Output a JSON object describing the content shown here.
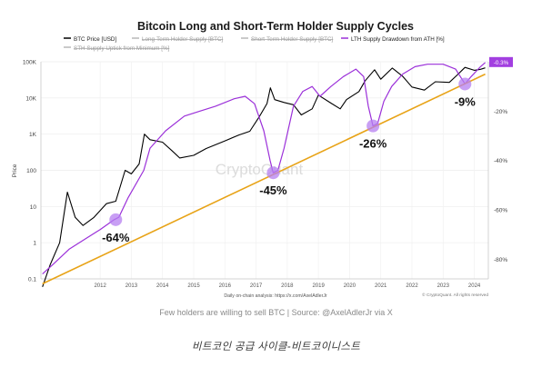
{
  "chart_data": {
    "type": "line",
    "title": "Bitcoin Long and Short-Term Holder Supply Cycles",
    "legend": [
      {
        "label": "BTC Price [USD]",
        "color": "#000000",
        "enabled": true
      },
      {
        "label": "Long-Term Holder Supply [BTC]",
        "color": "#9a9a9a",
        "enabled": false
      },
      {
        "label": "Short-Term Holder Supply [BTC]",
        "color": "#9a9a9a",
        "enabled": false
      },
      {
        "label": "LTH Supply Drawdown from ATH [%]",
        "color": "#9b30d9",
        "enabled": true
      },
      {
        "label": "STH Supply Uptick from Minimum [%]",
        "color": "#b07ad6",
        "enabled": false
      }
    ],
    "legend_position": "top",
    "x_ticks": [
      "2012",
      "2013",
      "2014",
      "2015",
      "2016",
      "2017",
      "2018",
      "2019",
      "2020",
      "2021",
      "2022",
      "2023",
      "2024"
    ],
    "xlim": [
      2010.6,
      2024.95
    ],
    "ylabel_left": "Price",
    "y_left_ticks": [
      "100K",
      "10K",
      "1K",
      "100",
      "10",
      "1",
      "0.1"
    ],
    "y_left_scale": "log",
    "ylim_left": [
      0.1,
      100000
    ],
    "y_right_ticks": [
      "-20%",
      "-40%",
      "-60%",
      "-80%"
    ],
    "ylim_right": [
      -88,
      0
    ],
    "current_value_label": "-0.3%",
    "grid": true,
    "series": [
      {
        "name": "BTC Price [USD]",
        "axis": "left",
        "color": "#000000",
        "points": [
          [
            2010.65,
            0.06
          ],
          [
            2010.9,
            0.25
          ],
          [
            2011.2,
            1
          ],
          [
            2011.45,
            25
          ],
          [
            2011.7,
            5
          ],
          [
            2011.95,
            3
          ],
          [
            2012.3,
            5
          ],
          [
            2012.7,
            12
          ],
          [
            2013.0,
            14
          ],
          [
            2013.3,
            100
          ],
          [
            2013.5,
            80
          ],
          [
            2013.75,
            150
          ],
          [
            2013.92,
            1000
          ],
          [
            2014.1,
            700
          ],
          [
            2014.5,
            600
          ],
          [
            2014.8,
            350
          ],
          [
            2015.05,
            220
          ],
          [
            2015.5,
            260
          ],
          [
            2015.9,
            400
          ],
          [
            2016.5,
            650
          ],
          [
            2016.95,
            950
          ],
          [
            2017.3,
            1200
          ],
          [
            2017.6,
            3000
          ],
          [
            2017.85,
            7000
          ],
          [
            2017.96,
            19000
          ],
          [
            2018.1,
            9000
          ],
          [
            2018.4,
            7500
          ],
          [
            2018.7,
            6500
          ],
          [
            2018.95,
            3400
          ],
          [
            2019.3,
            5000
          ],
          [
            2019.5,
            12000
          ],
          [
            2019.9,
            7200
          ],
          [
            2020.2,
            5000
          ],
          [
            2020.4,
            9000
          ],
          [
            2020.8,
            15000
          ],
          [
            2021.0,
            30000
          ],
          [
            2021.3,
            60000
          ],
          [
            2021.5,
            33000
          ],
          [
            2021.87,
            67000
          ],
          [
            2022.2,
            40000
          ],
          [
            2022.5,
            20000
          ],
          [
            2022.9,
            16500
          ],
          [
            2023.25,
            28000
          ],
          [
            2023.7,
            27000
          ],
          [
            2023.95,
            43000
          ],
          [
            2024.2,
            70000
          ],
          [
            2024.5,
            58000
          ],
          [
            2024.7,
            62000
          ],
          [
            2024.85,
            68000
          ]
        ]
      },
      {
        "name": "LTH Supply Drawdown from ATH [%]",
        "axis": "right",
        "color": "#9b30d9",
        "points": [
          [
            2010.65,
            -86
          ],
          [
            2011.0,
            -82
          ],
          [
            2011.5,
            -76
          ],
          [
            2012.0,
            -72
          ],
          [
            2012.5,
            -68
          ],
          [
            2012.95,
            -64
          ],
          [
            2013.1,
            -63
          ],
          [
            2013.4,
            -55
          ],
          [
            2013.9,
            -44
          ],
          [
            2014.1,
            -35
          ],
          [
            2014.6,
            -28
          ],
          [
            2015.2,
            -22
          ],
          [
            2015.7,
            -20
          ],
          [
            2016.2,
            -18
          ],
          [
            2016.8,
            -15
          ],
          [
            2017.15,
            -14
          ],
          [
            2017.45,
            -17
          ],
          [
            2017.75,
            -28
          ],
          [
            2017.95,
            -40
          ],
          [
            2018.05,
            -45
          ],
          [
            2018.2,
            -44
          ],
          [
            2018.4,
            -35
          ],
          [
            2018.7,
            -18
          ],
          [
            2019.0,
            -12
          ],
          [
            2019.3,
            -10
          ],
          [
            2019.55,
            -14
          ],
          [
            2019.9,
            -10
          ],
          [
            2020.3,
            -6
          ],
          [
            2020.7,
            -3
          ],
          [
            2020.95,
            -6
          ],
          [
            2021.1,
            -18
          ],
          [
            2021.25,
            -26
          ],
          [
            2021.4,
            -25
          ],
          [
            2021.6,
            -16
          ],
          [
            2021.85,
            -10
          ],
          [
            2022.2,
            -5
          ],
          [
            2022.6,
            -2
          ],
          [
            2023.0,
            -1
          ],
          [
            2023.5,
            -1
          ],
          [
            2023.9,
            -3
          ],
          [
            2024.2,
            -9
          ],
          [
            2024.4,
            -6
          ],
          [
            2024.7,
            -2
          ],
          [
            2024.85,
            -0.3
          ]
        ]
      },
      {
        "name": "Trend",
        "axis": "right",
        "color": "#e8a317",
        "points": [
          [
            2010.65,
            -90
          ],
          [
            2024.85,
            -5
          ]
        ]
      }
    ],
    "annotations": [
      {
        "text": "-64%",
        "x": 2013.0,
        "y": -64,
        "label_pos": "below"
      },
      {
        "text": "-45%",
        "x": 2018.05,
        "y": -45,
        "label_pos": "below"
      },
      {
        "text": "-26%",
        "x": 2021.25,
        "y": -26,
        "label_pos": "below"
      },
      {
        "text": "-9%",
        "x": 2024.2,
        "y": -9,
        "label_pos": "below"
      }
    ],
    "watermark": "CryptoQuant",
    "footer_note": "Daily on-chain analysis: https://x.com/AxelAdlerJr",
    "copyright": "© CryptoQuant. All rights reserved"
  },
  "source_text": "Few holders are willing to sell BTC | Source: @AxelAdlerJr via X",
  "caption_text": "비트코인 공급 사이클-비트코이니스트"
}
